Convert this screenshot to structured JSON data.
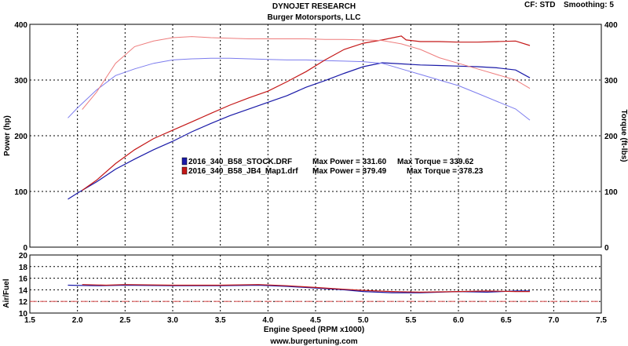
{
  "header": {
    "title": "DYNOJET RESEARCH",
    "subtitle": "Burger Motorsports, LLC",
    "cf_label": "CF: STD",
    "smoothing_label": "Smoothing: 5"
  },
  "footer": {
    "url": "www.burgertuning.com"
  },
  "colors": {
    "stock": "#1a1aa8",
    "jb4": "#c41818",
    "stock_torque": "#7c7cee",
    "jb4_torque": "#ee7c7c",
    "target_line": "#e06060"
  },
  "legend": [
    {
      "series": "stock",
      "file": "2016_340_B58_STOCK.DRF",
      "max_power": "Max Power = 331.60",
      "max_torque": "Max Torque = 339.62"
    },
    {
      "series": "jb4",
      "file": "2016_340_B58_JB4_Map1.drf",
      "max_power": "Max Power = 379.49",
      "max_torque": "Max Torque = 378.23"
    }
  ],
  "chart_data": [
    {
      "type": "line",
      "xlabel": "Engine Speed (RPM x1000)",
      "ylabel": "Power (hp)",
      "y2label": "Torque (ft-lbs)",
      "xlim": [
        1.5,
        7.5
      ],
      "ylim": [
        0,
        400
      ],
      "y2lim": [
        0,
        400
      ],
      "xticks": [
        "1.5",
        "2.0",
        "2.5",
        "3.0",
        "3.5",
        "4.0",
        "4.5",
        "5.0",
        "5.5",
        "6.0",
        "6.5",
        "7.0",
        "7.5"
      ],
      "yticks": [
        "0",
        "100",
        "200",
        "300",
        "400"
      ],
      "y2ticks": [
        "0",
        "100",
        "200",
        "300",
        "400"
      ],
      "grid": true,
      "legend_position": "center-left",
      "series": [
        {
          "name": "2016_340_B58_STOCK.DRF",
          "measure": "Power",
          "axis": "left",
          "color_key": "stock",
          "x": [
            1.9,
            2.0,
            2.2,
            2.4,
            2.6,
            2.8,
            3.0,
            3.2,
            3.4,
            3.6,
            3.8,
            4.0,
            4.2,
            4.4,
            4.6,
            4.8,
            5.0,
            5.2,
            5.4,
            5.6,
            5.8,
            6.0,
            6.2,
            6.4,
            6.6,
            6.75
          ],
          "y": [
            86,
            97,
            117,
            140,
            158,
            175,
            190,
            207,
            222,
            236,
            248,
            260,
            272,
            287,
            299,
            312,
            324,
            331,
            329,
            327,
            326,
            325,
            324,
            322,
            318,
            304
          ]
        },
        {
          "name": "2016_340_B58_STOCK.DRF",
          "measure": "Torque",
          "axis": "right",
          "color_key": "stock",
          "x": [
            1.9,
            2.0,
            2.2,
            2.4,
            2.6,
            2.8,
            3.0,
            3.2,
            3.4,
            3.6,
            3.8,
            4.0,
            4.2,
            4.4,
            4.6,
            4.8,
            5.0,
            5.2,
            5.4,
            5.6,
            5.8,
            6.0,
            6.2,
            6.4,
            6.6,
            6.75
          ],
          "y": [
            232,
            250,
            282,
            308,
            320,
            330,
            336,
            338,
            339,
            339,
            338,
            337,
            336,
            336,
            335,
            334,
            333,
            330,
            320,
            310,
            300,
            290,
            276,
            262,
            248,
            228
          ]
        },
        {
          "name": "2016_340_B58_JB4_Map1.drf",
          "measure": "Power",
          "axis": "left",
          "color_key": "jb4",
          "x": [
            2.05,
            2.2,
            2.4,
            2.6,
            2.8,
            3.0,
            3.2,
            3.4,
            3.6,
            3.8,
            4.0,
            4.2,
            4.4,
            4.6,
            4.8,
            5.0,
            5.2,
            5.4,
            5.45,
            5.6,
            5.8,
            6.0,
            6.2,
            6.4,
            6.6,
            6.75
          ],
          "y": [
            102,
            120,
            150,
            175,
            195,
            210,
            225,
            240,
            255,
            268,
            280,
            297,
            315,
            336,
            355,
            366,
            372,
            379,
            372,
            369,
            369,
            368,
            368,
            369,
            370,
            362
          ]
        },
        {
          "name": "2016_340_B58_JB4_Map1.drf",
          "measure": "Torque",
          "axis": "right",
          "color_key": "jb4",
          "x": [
            2.05,
            2.2,
            2.4,
            2.6,
            2.8,
            3.0,
            3.2,
            3.4,
            3.6,
            3.8,
            4.0,
            4.2,
            4.4,
            4.6,
            4.8,
            5.0,
            5.2,
            5.4,
            5.6,
            5.8,
            6.0,
            6.2,
            6.4,
            6.6,
            6.75
          ],
          "y": [
            247,
            278,
            330,
            360,
            370,
            376,
            378,
            376,
            375,
            374,
            374,
            374,
            374,
            373,
            373,
            372,
            371,
            365,
            355,
            340,
            330,
            320,
            310,
            300,
            285
          ]
        }
      ]
    },
    {
      "type": "line",
      "ylabel": "Air/Fuel",
      "xlim": [
        1.5,
        7.5
      ],
      "ylim": [
        10,
        20
      ],
      "yticks": [
        "10",
        "12",
        "14",
        "16",
        "18",
        "20"
      ],
      "grid": true,
      "reference_line": 12,
      "series": [
        {
          "name": "2016_340_B58_STOCK.DRF",
          "color_key": "stock",
          "x": [
            1.9,
            2.2,
            2.5,
            3.0,
            3.5,
            3.9,
            4.2,
            4.5,
            4.8,
            5.0,
            5.3,
            5.6,
            6.0,
            6.3,
            6.6,
            6.75
          ],
          "y": [
            14.8,
            14.7,
            14.8,
            14.7,
            14.7,
            14.8,
            14.6,
            14.3,
            14.0,
            13.7,
            13.5,
            13.5,
            13.7,
            13.6,
            13.8,
            13.8
          ]
        },
        {
          "name": "2016_340_B58_JB4_Map1.drf",
          "color_key": "jb4",
          "x": [
            2.05,
            2.3,
            2.5,
            3.0,
            3.5,
            3.9,
            4.2,
            4.5,
            4.8,
            5.0,
            5.3,
            5.6,
            6.0,
            6.3,
            6.6,
            6.75
          ],
          "y": [
            14.9,
            14.8,
            14.9,
            14.8,
            14.8,
            14.9,
            14.7,
            14.4,
            14.1,
            13.9,
            13.7,
            13.6,
            13.7,
            13.8,
            13.7,
            13.7
          ]
        }
      ]
    }
  ]
}
